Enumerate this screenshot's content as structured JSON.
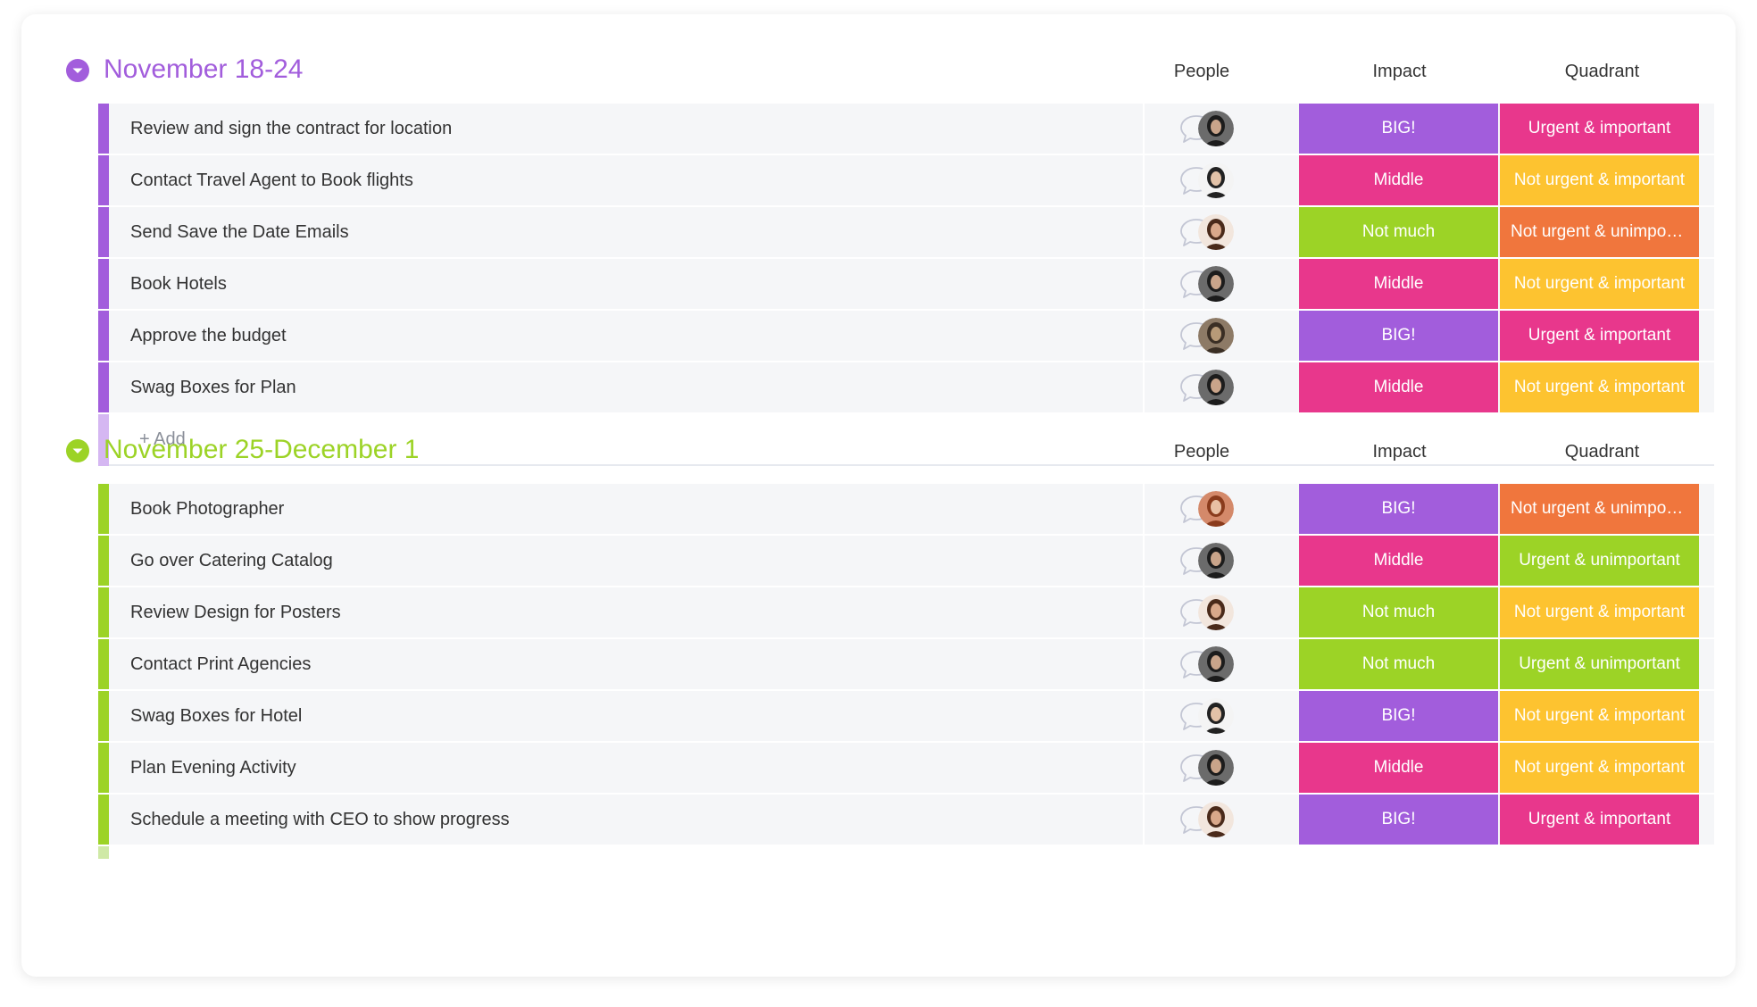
{
  "colors": {
    "purple_group": "#a25ddc",
    "purple_light": "#d5b7f2",
    "green_group": "#9cd326",
    "green_light": "#cfe9a6",
    "status": {
      "BIG!": "#a25ddc",
      "Middle": "#e8378c",
      "Not much": "#9cd326",
      "Urgent & important": "#e8378c",
      "Not urgent & important": "#fdc330",
      "Not urgent & unimportant": "#f0763d",
      "Urgent & unimportant": "#9cd326"
    }
  },
  "columns": {
    "people": "People",
    "impact": "Impact",
    "quadrant": "Quadrant"
  },
  "groups": [
    {
      "title": "November 18-24",
      "add_label": "+ Add",
      "rows": [
        {
          "name": "Review and sign the contract for location",
          "avatar": "woman-dark-hair",
          "impact": "BIG!",
          "quadrant": "Urgent & important"
        },
        {
          "name": "Contact Travel Agent to Book flights",
          "avatar": "man-dark-shirt",
          "impact": "Middle",
          "quadrant": "Not urgent & important"
        },
        {
          "name": "Send Save the Date Emails",
          "avatar": "woman-curly-hair",
          "impact": "Not much",
          "quadrant": "Not urgent & unimportant"
        },
        {
          "name": "Book Hotels",
          "avatar": "woman-dark-hair",
          "impact": "Middle",
          "quadrant": "Not urgent & important"
        },
        {
          "name": "Approve the budget",
          "avatar": "pug-dog",
          "impact": "BIG!",
          "quadrant": "Urgent & important"
        },
        {
          "name": "Swag Boxes for Plan",
          "avatar": "woman-dark-hair",
          "impact": "Middle",
          "quadrant": "Not urgent & important"
        }
      ]
    },
    {
      "title": "November 25-December 1",
      "rows": [
        {
          "name": "Book Photographer",
          "avatar": "woman-red-hair",
          "impact": "BIG!",
          "quadrant": "Not urgent & unimportant"
        },
        {
          "name": "Go over Catering Catalog",
          "avatar": "woman-dark-hair",
          "impact": "Middle",
          "quadrant": "Urgent & unimportant"
        },
        {
          "name": "Review Design for Posters",
          "avatar": "woman-curly-hair",
          "impact": "Not much",
          "quadrant": "Not urgent & important"
        },
        {
          "name": "Contact Print Agencies",
          "avatar": "woman-dark-hair",
          "impact": "Not much",
          "quadrant": "Urgent & unimportant"
        },
        {
          "name": "Swag Boxes for Hotel",
          "avatar": "man-dark-shirt",
          "impact": "BIG!",
          "quadrant": "Not urgent & important"
        },
        {
          "name": "Plan Evening Activity",
          "avatar": "woman-dark-hair",
          "impact": "Middle",
          "quadrant": "Not urgent & important"
        },
        {
          "name": "Schedule a meeting with CEO to show progress",
          "avatar": "woman-curly-hair",
          "impact": "BIG!",
          "quadrant": "Urgent & important"
        }
      ]
    }
  ]
}
